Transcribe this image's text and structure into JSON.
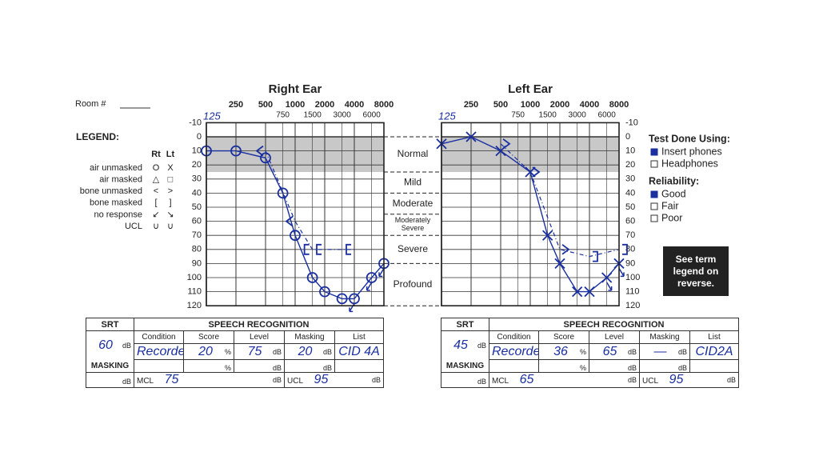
{
  "room_label": "Room #",
  "legend": {
    "title": "LEGEND:",
    "rt": "Rt",
    "lt": "Lt",
    "rows": [
      {
        "label": "air unmasked",
        "rt": "O",
        "lt": "X"
      },
      {
        "label": "air masked",
        "rt": "△",
        "lt": "□"
      },
      {
        "label": "bone unmasked",
        "rt": "<",
        "lt": ">"
      },
      {
        "label": "bone masked",
        "rt": "[",
        "lt": "]"
      },
      {
        "label": "no response",
        "rt": "↙",
        "lt": "↘"
      },
      {
        "label": "UCL",
        "rt": "∪",
        "lt": "∪"
      }
    ]
  },
  "db_ticks": [
    -10,
    0,
    10,
    20,
    30,
    40,
    50,
    60,
    70,
    80,
    90,
    100,
    110,
    120
  ],
  "freq_ticks_major": [
    250,
    500,
    1000,
    2000,
    4000,
    8000
  ],
  "freq_ticks_minor": [
    750,
    1500,
    3000,
    6000
  ],
  "hand_freq": 125,
  "degree_labels": [
    "Normal",
    "Mild",
    "Moderate",
    "Moderately Severe",
    "Severe",
    "Profound"
  ],
  "degree_bounds": [
    0,
    25,
    40,
    55,
    70,
    90,
    120
  ],
  "ears": [
    {
      "title": "Right Ear",
      "air": {
        "symbol": "circle",
        "freqs": [
          125,
          250,
          500,
          750,
          1000,
          1500,
          2000,
          3000,
          4000,
          6000,
          8000
        ],
        "db": [
          10,
          10,
          15,
          40,
          70,
          100,
          110,
          115,
          115,
          100,
          90
        ],
        "no_response": [
          false,
          false,
          false,
          false,
          false,
          false,
          false,
          false,
          true,
          true,
          true
        ]
      },
      "bone": {
        "freqs": [
          500,
          1000,
          1500,
          2000,
          4000
        ],
        "db": [
          10,
          60,
          80,
          80,
          80
        ],
        "symbols": [
          "lt",
          "lt",
          "lbracket",
          "lbracket",
          "lbracket"
        ]
      }
    },
    {
      "title": "Left Ear",
      "air": {
        "symbol": "cross",
        "freqs": [
          125,
          250,
          500,
          1000,
          1500,
          2000,
          3000,
          4000,
          6000,
          8000
        ],
        "db": [
          5,
          0,
          10,
          25,
          70,
          90,
          110,
          110,
          100,
          90
        ],
        "no_response": [
          false,
          false,
          false,
          false,
          false,
          false,
          false,
          false,
          true,
          true
        ]
      },
      "bone": {
        "freqs": [
          500,
          1000,
          2000,
          4000,
          8000
        ],
        "db": [
          5,
          25,
          80,
          85,
          80
        ],
        "symbols": [
          "gt",
          "gt",
          "gt",
          "rbracket",
          "rbracket"
        ]
      }
    }
  ],
  "test_done": {
    "title": "Test Done Using:",
    "options": [
      {
        "label": "Insert phones",
        "checked": true
      },
      {
        "label": "Headphones",
        "checked": false
      }
    ]
  },
  "reliability": {
    "title": "Reliability:",
    "options": [
      {
        "label": "Good",
        "checked": true
      },
      {
        "label": "Fair",
        "checked": false
      },
      {
        "label": "Poor",
        "checked": false
      }
    ]
  },
  "note": [
    "See term",
    "legend on",
    "reverse."
  ],
  "units": {
    "db": "dB",
    "pct": "%",
    "masking": "MASKING",
    "mcl": "MCL",
    "ucl": "UCL"
  },
  "speech_tables": [
    {
      "srt_header": "SRT",
      "sr_header": "SPEECH RECOGNITION",
      "columns": [
        "Condition",
        "Score",
        "Level",
        "Masking",
        "List"
      ],
      "srt": 60,
      "condition": "Recorded",
      "score": 20,
      "level": 75,
      "masking": 20,
      "list": "CID 4A",
      "mcl": 75,
      "ucl": 95
    },
    {
      "srt_header": "SRT",
      "sr_header": "SPEECH RECOGNITION",
      "columns": [
        "Condition",
        "Score",
        "Level",
        "Masking",
        "List"
      ],
      "srt": 45,
      "condition": "Recorded",
      "score": 36,
      "level": 65,
      "masking": "—",
      "list": "CID2A",
      "mcl": 65,
      "ucl": 95
    }
  ]
}
